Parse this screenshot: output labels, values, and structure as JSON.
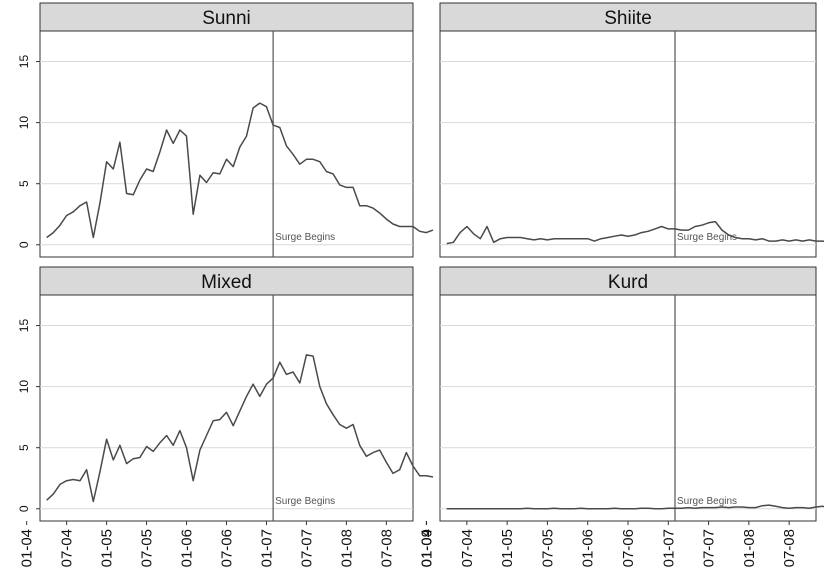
{
  "chart_data": {
    "type": "line",
    "x_ticks": [
      "01-04",
      "07-04",
      "01-05",
      "07-05",
      "01-06",
      "07-06",
      "01-07",
      "07-07",
      "01-08",
      "07-08",
      "01-09"
    ],
    "x_range": [
      "2004-03",
      "2008-11"
    ],
    "ylim": [
      -1,
      17.5
    ],
    "y_ticks": [
      "0",
      "5",
      "10",
      "15"
    ],
    "grid": true,
    "annotation": "Surge Begins",
    "surge_date": "2007-02",
    "start_month": "2004-04",
    "series": [
      {
        "name": "Sunni",
        "values": [
          0.6,
          1.0,
          1.6,
          2.4,
          2.7,
          3.2,
          3.5,
          0.6,
          3.4,
          6.8,
          6.2,
          8.4,
          4.2,
          4.1,
          5.3,
          6.2,
          6.0,
          7.6,
          9.4,
          8.3,
          9.4,
          8.9,
          2.5,
          5.7,
          5.1,
          5.9,
          5.8,
          7.0,
          6.4,
          8.0,
          8.9,
          11.2,
          11.6,
          11.3,
          9.8,
          9.6,
          8.1,
          7.4,
          6.6,
          7.0,
          7.0,
          6.8,
          6.0,
          5.8,
          4.9,
          4.7,
          4.7,
          3.2,
          3.2,
          3.0,
          2.6,
          2.1,
          1.7,
          1.5,
          1.5,
          1.5,
          1.1,
          1.0,
          1.2
        ]
      },
      {
        "name": "Shiite",
        "values": [
          0.1,
          0.2,
          1.0,
          1.5,
          0.9,
          0.5,
          1.5,
          0.2,
          0.5,
          0.6,
          0.6,
          0.6,
          0.5,
          0.4,
          0.5,
          0.4,
          0.5,
          0.5,
          0.5,
          0.5,
          0.5,
          0.5,
          0.3,
          0.5,
          0.6,
          0.7,
          0.8,
          0.7,
          0.8,
          1.0,
          1.1,
          1.3,
          1.5,
          1.3,
          1.3,
          1.2,
          1.2,
          1.5,
          1.6,
          1.8,
          1.9,
          1.2,
          0.8,
          0.6,
          0.5,
          0.5,
          0.4,
          0.5,
          0.3,
          0.3,
          0.4,
          0.3,
          0.4,
          0.3,
          0.4,
          0.3,
          0.3,
          0.2,
          0.2
        ]
      },
      {
        "name": "Mixed",
        "values": [
          0.7,
          1.2,
          2.0,
          2.3,
          2.4,
          2.3,
          3.2,
          0.6,
          3.0,
          5.7,
          4.0,
          5.2,
          3.7,
          4.1,
          4.2,
          5.1,
          4.7,
          5.4,
          6.0,
          5.2,
          6.4,
          5.0,
          2.3,
          4.8,
          6.0,
          7.2,
          7.3,
          7.9,
          6.8,
          8.0,
          9.2,
          10.2,
          9.2,
          10.2,
          10.7,
          12.0,
          11.0,
          11.2,
          10.3,
          12.6,
          12.5,
          10.0,
          8.6,
          7.7,
          6.9,
          6.6,
          6.9,
          5.2,
          4.3,
          4.6,
          4.8,
          3.8,
          2.9,
          3.2,
          4.6,
          3.5,
          2.7,
          2.7,
          2.6
        ]
      },
      {
        "name": "Kurd",
        "values": [
          0.0,
          0.0,
          0.0,
          0.0,
          0.0,
          0.0,
          0.0,
          0.0,
          0.0,
          0.0,
          0.0,
          0.0,
          0.05,
          0.0,
          0.0,
          0.0,
          0.05,
          0.0,
          0.0,
          0.0,
          0.05,
          0.0,
          0.0,
          0.0,
          0.0,
          0.05,
          0.0,
          0.0,
          0.0,
          0.05,
          0.05,
          0.0,
          0.0,
          0.05,
          0.05,
          0.05,
          0.1,
          0.05,
          0.1,
          0.1,
          0.1,
          0.15,
          0.1,
          0.15,
          0.15,
          0.1,
          0.1,
          0.25,
          0.3,
          0.2,
          0.1,
          0.05,
          0.1,
          0.1,
          0.05,
          0.15,
          0.2,
          0.05,
          0.05
        ]
      }
    ]
  }
}
